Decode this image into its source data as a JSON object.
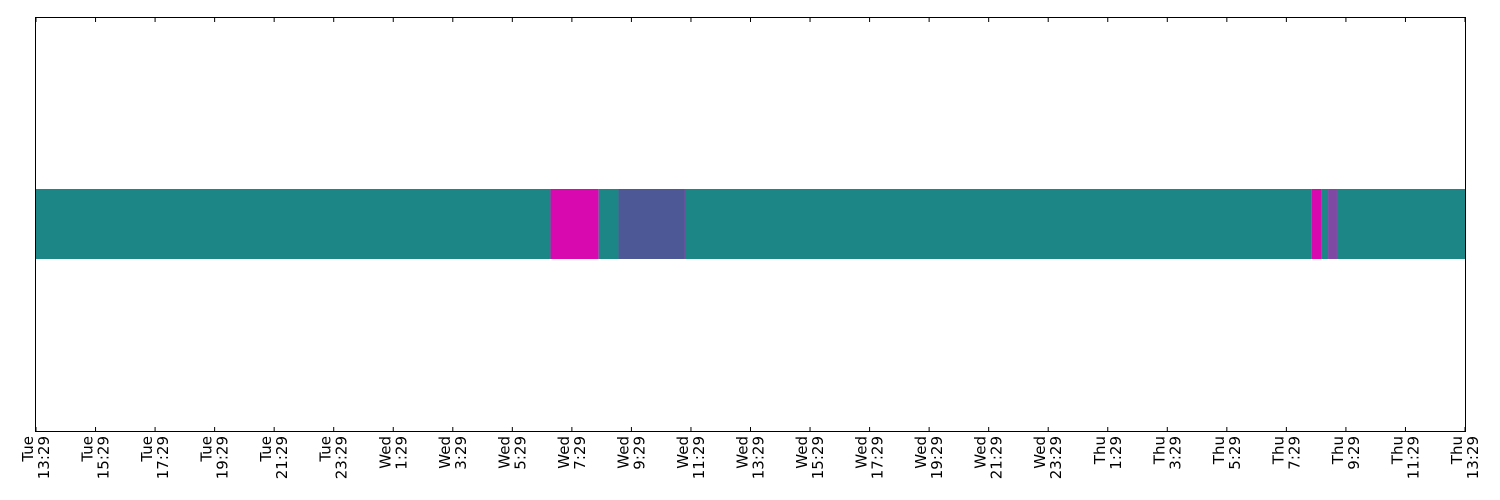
{
  "chart_data": {
    "type": "timeline",
    "x_axis": {
      "start": "Tue 13:29",
      "end": "Thu 13:29",
      "tick_labels": [
        {
          "day": "Tue",
          "time": "13:29"
        },
        {
          "day": "Tue",
          "time": "15:29"
        },
        {
          "day": "Tue",
          "time": "17:29"
        },
        {
          "day": "Tue",
          "time": "19:29"
        },
        {
          "day": "Tue",
          "time": "21:29"
        },
        {
          "day": "Tue",
          "time": "23:29"
        },
        {
          "day": "Wed",
          "time": "1:29"
        },
        {
          "day": "Wed",
          "time": "3:29"
        },
        {
          "day": "Wed",
          "time": "5:29"
        },
        {
          "day": "Wed",
          "time": "7:29"
        },
        {
          "day": "Wed",
          "time": "9:29"
        },
        {
          "day": "Wed",
          "time": "11:29"
        },
        {
          "day": "Wed",
          "time": "13:29"
        },
        {
          "day": "Wed",
          "time": "15:29"
        },
        {
          "day": "Wed",
          "time": "17:29"
        },
        {
          "day": "Wed",
          "time": "19:29"
        },
        {
          "day": "Wed",
          "time": "21:29"
        },
        {
          "day": "Wed",
          "time": "23:29"
        },
        {
          "day": "Thu",
          "time": "1:29"
        },
        {
          "day": "Thu",
          "time": "3:29"
        },
        {
          "day": "Thu",
          "time": "5:29"
        },
        {
          "day": "Thu",
          "time": "7:29"
        },
        {
          "day": "Thu",
          "time": "9:29"
        },
        {
          "day": "Thu",
          "time": "11:29"
        },
        {
          "day": "Thu",
          "time": "13:29"
        }
      ]
    },
    "segments": [
      {
        "start": "Tue 13:29",
        "end": "Wed 6:46",
        "color": "#1c8686"
      },
      {
        "start": "Wed 6:46",
        "end": "Wed 8:23",
        "color": "#d909b0"
      },
      {
        "start": "Wed 8:23",
        "end": "Wed 9:03",
        "color": "#1c8686"
      },
      {
        "start": "Wed 9:03",
        "end": "Wed 11:16",
        "color": "#4d5896"
      },
      {
        "start": "Wed 11:16",
        "end": "Wed 11:19",
        "color": "#7d49a3"
      },
      {
        "start": "Wed 11:19",
        "end": "Thu 8:20",
        "color": "#1c8686"
      },
      {
        "start": "Thu 8:20",
        "end": "Thu 8:40",
        "color": "#d909b0"
      },
      {
        "start": "Thu 8:40",
        "end": "Thu 8:53",
        "color": "#1c8686"
      },
      {
        "start": "Thu 8:53",
        "end": "Thu 9:11",
        "color": "#7d49a3"
      },
      {
        "start": "Thu 9:11",
        "end": "Thu 13:29",
        "color": "#1c8686"
      }
    ],
    "grid": false,
    "legend": "none",
    "y_ticks": "none"
  }
}
